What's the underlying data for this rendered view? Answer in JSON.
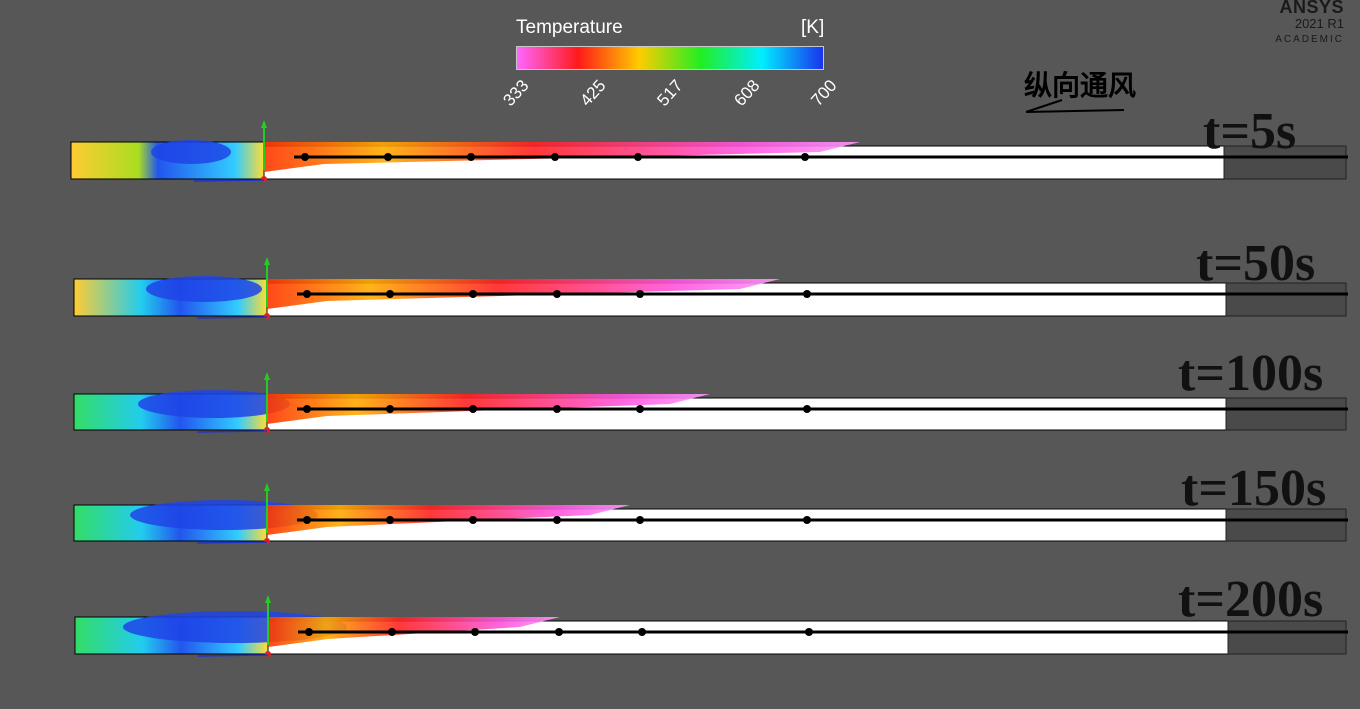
{
  "legend": {
    "title": "Temperature",
    "unit": "[K]",
    "ticks": [
      "333",
      "425",
      "517",
      "608",
      "700"
    ],
    "gradient_colors": [
      "#ff66ff",
      "#ff1a1a",
      "#ffcc00",
      "#22ee22",
      "#00eeff",
      "#1a33ee"
    ]
  },
  "brand": {
    "name": "ANSYS",
    "version": "2021 R1",
    "edition": "ACADEMIC"
  },
  "heading": "纵向通风",
  "snapshots": [
    {
      "time_label": "t=5s"
    },
    {
      "time_label": "t=50s"
    },
    {
      "time_label": "t=100s"
    },
    {
      "time_label": "t=150s"
    },
    {
      "time_label": "t=200s"
    }
  ],
  "colors": {
    "background": "#575757",
    "tunnel_fill": "#ffffff",
    "probe_line": "#000000",
    "axis_y": "#22cc22",
    "axis_x": "#dd2222",
    "axis_z": "#2233cc"
  }
}
